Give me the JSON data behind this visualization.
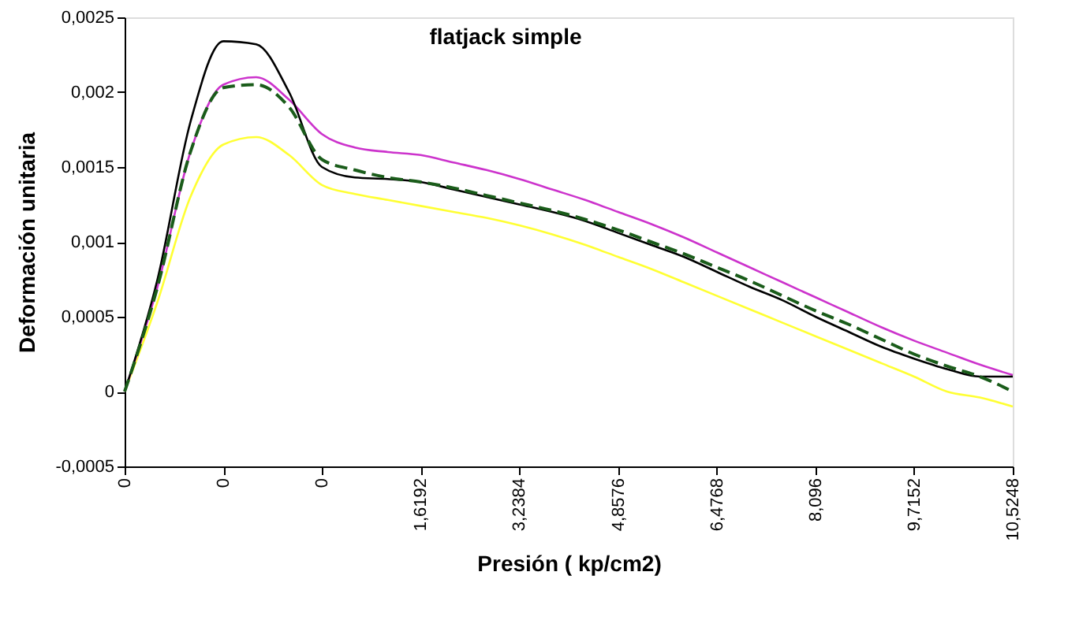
{
  "chart_data": {
    "type": "line",
    "title": "flatjack simple",
    "xlabel": "Presión ( kp/cm2)",
    "ylabel": "Deformación  unitaria",
    "categories": [
      "0",
      null,
      null,
      "0",
      null,
      null,
      "0",
      null,
      null,
      "1,6192",
      null,
      null,
      "3,2384",
      null,
      null,
      "4,8576",
      null,
      null,
      "6,4768",
      null,
      null,
      "8,096",
      null,
      null,
      "9,7152",
      null,
      null,
      "10,5248"
    ],
    "ylim": [
      -0.0005,
      0.0025
    ],
    "yticks": [
      {
        "value": -0.0005,
        "label": "-0,0005"
      },
      0,
      {
        "value": 0.0005,
        "label": "0,0005"
      },
      {
        "value": 0.001,
        "label": "0,001"
      },
      {
        "value": 0.0015,
        "label": "0,0015"
      },
      {
        "value": 0.002,
        "label": "0,002"
      },
      {
        "value": 0.0025,
        "label": "0,0025"
      }
    ],
    "grid": false,
    "marker": "none",
    "series": [
      {
        "color": "#ffff33",
        "values": [
          0,
          0.0006,
          0.0013,
          0.00165,
          0.0017,
          0.00158,
          0.00138,
          0.00132,
          0.00128,
          0.00124,
          0.0012,
          0.00116,
          0.00111,
          0.00105,
          0.00098,
          0.0009,
          0.00082,
          0.00073,
          0.00064,
          0.00055,
          0.00046,
          0.00037,
          0.00028,
          0.00019,
          0.0001,
          0,
          -4e-05,
          -0.0001
        ]
      },
      {
        "color": "#cc33cc",
        "values": [
          0,
          0.0007,
          0.0016,
          0.00205,
          0.0021,
          0.00195,
          0.00172,
          0.00163,
          0.0016,
          0.00158,
          0.00153,
          0.00148,
          0.00142,
          0.00135,
          0.00128,
          0.0012,
          0.00112,
          0.00103,
          0.00093,
          0.00083,
          0.00073,
          0.00063,
          0.00053,
          0.00043,
          0.00034,
          0.00026,
          0.00018,
          0.00011
        ]
      },
      {
        "color": "#000000",
        "values": [
          0,
          0.00075,
          0.0018,
          0.00234,
          0.00232,
          0.002,
          0.0015,
          0.00143,
          0.00142,
          0.0014,
          0.00135,
          0.0013,
          0.00125,
          0.0012,
          0.00114,
          0.00106,
          0.00098,
          0.0009,
          0.0008,
          0.0007,
          0.00061,
          0.0005,
          0.0004,
          0.0003,
          0.00022,
          0.00015,
          0.0001,
          0.0001
        ]
      },
      {
        "color": "#1a5c1a",
        "line_style": "dashed",
        "values": [
          0,
          0.0007,
          0.0016,
          0.00203,
          0.00205,
          0.0019,
          0.00155,
          0.00148,
          0.00143,
          0.0014,
          0.00136,
          0.00131,
          0.00126,
          0.00121,
          0.00115,
          0.00108,
          0.001,
          0.00092,
          0.00083,
          0.00074,
          0.00064,
          0.00054,
          0.00045,
          0.00035,
          0.00025,
          0.00017,
          0.0001,
          0
        ]
      }
    ]
  }
}
